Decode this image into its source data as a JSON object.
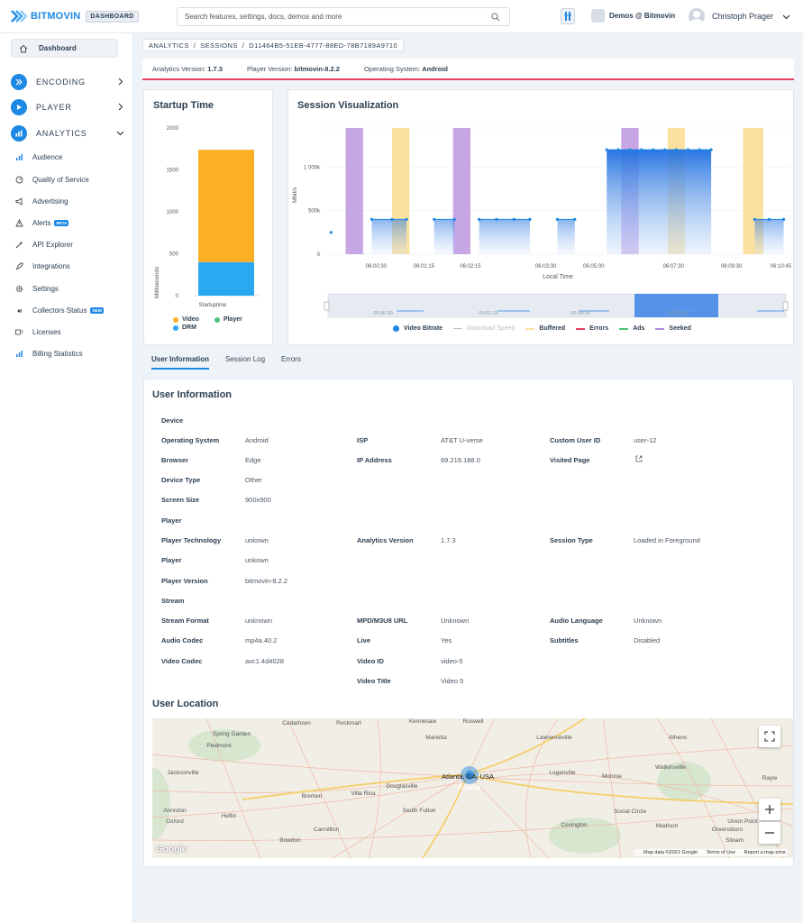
{
  "brand": {
    "name": "BITMOVIN",
    "badge": "DASHBOARD"
  },
  "search": {
    "placeholder": "Search features, settings, docs, demos and more"
  },
  "org": {
    "label": "Demos @ Bitmovin"
  },
  "user": {
    "name": "Christoph Prager"
  },
  "sidebar": {
    "dashboard": "Dashboard",
    "main": [
      {
        "label": "ENCODING"
      },
      {
        "label": "PLAYER"
      },
      {
        "label": "ANALYTICS"
      }
    ],
    "sub": [
      {
        "label": "Audience"
      },
      {
        "label": "Quality of Service"
      },
      {
        "label": "Advertising"
      },
      {
        "label": "Alerts",
        "badge": "BETA"
      },
      {
        "label": "API Explorer"
      },
      {
        "label": "Integrations"
      },
      {
        "label": "Settings"
      },
      {
        "label": "Collectors Status",
        "badge": "NEW"
      },
      {
        "label": "Licenses"
      },
      {
        "label": "Billing Statistics"
      }
    ]
  },
  "breadcrumb": [
    "ANALYTICS",
    "SESSIONS",
    "D11464B5-51EB-4777-88ED-78B7189A9710"
  ],
  "infobar": {
    "analytics_label": "Analytics Version:",
    "analytics_value": "1.7.3",
    "player_label": "Player Version:",
    "player_value": "bitmovin-8.2.2",
    "os_label": "Operating System:",
    "os_value": "Android"
  },
  "startup": {
    "title": "Startup Time",
    "legend": [
      "Video",
      "Player",
      "DRM"
    ]
  },
  "session": {
    "title": "Session Visualization",
    "legend": [
      "Video Bitrate",
      "Download Speed",
      "Buffered",
      "Errors",
      "Ads",
      "Seeked"
    ],
    "nav_ticks": [
      "05:00:30",
      "05:02:15",
      "05:04:00",
      "05:05:45"
    ]
  },
  "chart_data": [
    {
      "type": "bar",
      "title": "Startup Time",
      "ylabel": "Milliseconds",
      "categories": [
        "Startuptime"
      ],
      "series": [
        {
          "name": "DRM",
          "values": [
            400
          ]
        },
        {
          "name": "Player",
          "values": [
            0
          ]
        },
        {
          "name": "Video",
          "values": [
            1340
          ]
        }
      ],
      "ylim": [
        0,
        2000
      ],
      "yticks": [
        "0",
        "500",
        "1000",
        "1500",
        "2000"
      ],
      "stacked": true,
      "colors": {
        "Video": "#fbaf24",
        "Player": "#4cc37e",
        "DRM": "#2aa9f0"
      }
    },
    {
      "type": "line",
      "title": "Session Visualization",
      "ylabel": "Mbit/s",
      "xlabel": "Local Time",
      "xticks": [
        "06:00:30",
        "06:01:15",
        "06:02:15",
        "06:03:30",
        "06:05:00",
        "06:07:30",
        "06:09:30",
        "06:10:45"
      ],
      "yticks": [
        "0",
        "500k",
        "1 000k"
      ],
      "ylim": [
        0,
        1450000
      ],
      "xlim_minutes": [
        0,
        11.8
      ],
      "series": [
        {
          "name": "Video Bitrate",
          "segments": [
            {
              "x_min": [
                0.2
              ],
              "y": 250000
            },
            {
              "x_min": [
                1.6,
                2.3,
                2.8
              ],
              "y": 400000
            },
            {
              "x_min": [
                3.75,
                4.45
              ],
              "y": 400000
            },
            {
              "x_min": [
                5.3,
                5.9,
                6.5,
                7.05
              ],
              "y": 400000
            },
            {
              "x_min": [
                8.0,
                8.6
              ],
              "y": 400000
            },
            {
              "x_min": [
                9.7,
                10.1,
                10.5,
                10.9,
                11.3,
                11.7,
                12.1,
                12.5,
                12.9,
                13.3
              ],
              "y": 1200000
            },
            {
              "x_min": [
                14.8,
                15.3,
                15.8
              ],
              "y": 400000
            }
          ]
        },
        {
          "name": "Buffered",
          "bands_min": [
            [
              2.3,
              2.9
            ],
            [
              11.8,
              12.4
            ],
            [
              14.4,
              15.1
            ]
          ]
        },
        {
          "name": "Seeked",
          "bands_min": [
            [
              0.7,
              1.3
            ],
            [
              4.4,
              5.0
            ],
            [
              10.2,
              10.8
            ]
          ]
        }
      ],
      "colors": {
        "Video Bitrate": "#1e88e5",
        "Buffered": "#fbe2a0",
        "Seeked": "#c7a6e6"
      }
    }
  ],
  "tabs": [
    "User Information",
    "Session Log",
    "Errors"
  ],
  "user_info": {
    "title": "User Information",
    "sections": {
      "device": "Device",
      "player": "Player",
      "stream": "Stream"
    },
    "device": {
      "os": [
        "Operating System",
        "Android"
      ],
      "browser": [
        "Browser",
        "Edge"
      ],
      "device_type": [
        "Device Type",
        "Other"
      ],
      "screen": [
        "Screen Size",
        "900x900"
      ],
      "isp": [
        "ISP",
        "AT&T U-verse"
      ],
      "ip": [
        "IP Address",
        "69.219.188.0"
      ],
      "custom_user": [
        "Custom User ID",
        "user-12"
      ],
      "visited": [
        "Visited Page",
        ""
      ]
    },
    "player": {
      "tech": [
        "Player Technology",
        "unkown"
      ],
      "player": [
        "Player",
        "unkown"
      ],
      "version": [
        "Player Version",
        "bitmovin-8.2.2"
      ],
      "analytics": [
        "Analytics Version",
        "1.7.3"
      ],
      "session_type": [
        "Session Type",
        "Loaded in Foreground"
      ]
    },
    "stream": {
      "format": [
        "Stream Format",
        "unknown"
      ],
      "audio_codec": [
        "Audio Codec",
        "mp4a.40.2"
      ],
      "video_codec": [
        "Video Codec",
        "avc1.4d4028"
      ],
      "mpd": [
        "MPD/M3U8 URL",
        "Unknown"
      ],
      "live": [
        "Live",
        "Yes"
      ],
      "video_id": [
        "Video ID",
        "video-5"
      ],
      "video_title": [
        "Video Title",
        "Video 5"
      ],
      "audio_lang": [
        "Audio Language",
        "Unknown"
      ],
      "subtitles": [
        "Subtitles",
        "Disabled"
      ]
    }
  },
  "location": {
    "title": "User Location",
    "marker_label": "Atlanta, GA, USA",
    "place_labels": [
      "Cedartown",
      "Rockmart",
      "Kennesaw",
      "Roswell",
      "Spring Garden",
      "Marietta",
      "Lawrenceville",
      "Athens",
      "Piedmont",
      "Loganville",
      "Watkinsville",
      "Jacksonville",
      "Atlanta",
      "Monroe",
      "Bremen",
      "Villa Rica",
      "Douglasville",
      "Rayle",
      "Anniston",
      "Heflin",
      "South Fulton",
      "Social Circle",
      "Oxford",
      "Carrollton",
      "Union Point",
      "Covington",
      "Madison",
      "Greensboro",
      "Bowdon",
      "Siloam"
    ],
    "footer": [
      "Map data ©2021 Google",
      "Terms of Use",
      "Report a map error"
    ],
    "google": "Google"
  }
}
